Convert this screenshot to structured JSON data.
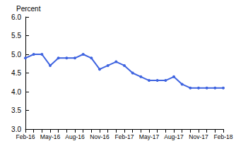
{
  "chart_data": {
    "type": "line",
    "title": "Percent",
    "categories": [
      "Feb-16",
      null,
      null,
      "May-16",
      null,
      null,
      "Aug-16",
      null,
      null,
      "Nov-16",
      null,
      null,
      "Feb-17",
      null,
      null,
      "May-17",
      null,
      null,
      "Aug-17",
      null,
      null,
      "Nov-17",
      null,
      null,
      "Feb-18"
    ],
    "values": [
      4.9,
      5.0,
      5.0,
      4.7,
      4.9,
      4.9,
      4.9,
      5.0,
      4.9,
      4.6,
      4.7,
      4.8,
      4.7,
      4.5,
      4.4,
      4.3,
      4.3,
      4.3,
      4.4,
      4.2,
      4.1,
      4.1,
      4.1,
      4.1,
      4.1
    ],
    "color": "#3f64e0",
    "marker": "circle",
    "ylim": [
      3.0,
      6.0
    ],
    "yticks": [
      {
        "value": 3.0,
        "label": "3.0"
      },
      3.5,
      {
        "value": 4.0,
        "label": "4.0"
      },
      4.5,
      {
        "value": 5.0,
        "label": "5.0"
      },
      5.5,
      {
        "value": 6.0,
        "label": "6.0"
      }
    ],
    "grid": false
  }
}
